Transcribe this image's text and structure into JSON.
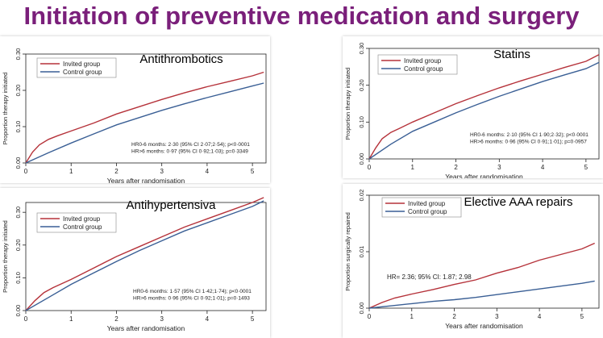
{
  "slide_title": "Initiation of preventive medication and surgery",
  "colors": {
    "invited": "#b5323a",
    "control": "#3a5f95",
    "plot_bg": "#ffffff",
    "frame": "#000000",
    "title": "#7a1f7a"
  },
  "chart_data": [
    {
      "type": "line",
      "title": "Antithrombotics",
      "xlabel": "Years after randomisation",
      "ylabel": "Proportion therapy initiated",
      "xlim": [
        0,
        5.3
      ],
      "ylim": [
        0,
        0.3
      ],
      "xticks": [
        "0",
        "1",
        "2",
        "3",
        "4",
        "5"
      ],
      "yticks": [
        "0.00",
        "0.10",
        "0.20",
        "0.30"
      ],
      "legend": [
        "Invited group",
        "Control group"
      ],
      "annotation_lines": [
        "HR0-6 months: 2·30 (95% CI 2·07;2·54); p<0·0001",
        "HR>6 months: 0·97 (95% CI 0·92;1·03); p=0·3349"
      ],
      "series": [
        {
          "name": "Invited group",
          "x": [
            0,
            0.15,
            0.3,
            0.5,
            0.7,
            1,
            1.5,
            2,
            2.5,
            3,
            3.5,
            4,
            4.5,
            5,
            5.25
          ],
          "y": [
            0,
            0.03,
            0.05,
            0.065,
            0.075,
            0.088,
            0.11,
            0.135,
            0.155,
            0.175,
            0.193,
            0.21,
            0.225,
            0.24,
            0.25
          ]
        },
        {
          "name": "Control group",
          "x": [
            0,
            0.5,
            1,
            1.5,
            2,
            2.5,
            3,
            3.5,
            4,
            4.5,
            5,
            5.25
          ],
          "y": [
            0,
            0.028,
            0.055,
            0.08,
            0.105,
            0.125,
            0.145,
            0.163,
            0.18,
            0.196,
            0.212,
            0.22
          ]
        }
      ]
    },
    {
      "type": "line",
      "title": "Statins",
      "xlabel": "Years after randomisation",
      "ylabel": "Proportion therapy initiated",
      "xlim": [
        0,
        5.3
      ],
      "ylim": [
        0,
        0.3
      ],
      "xticks": [
        "0",
        "1",
        "2",
        "3",
        "4",
        "5"
      ],
      "yticks": [
        "0.00",
        "0.10",
        "0.20",
        "0.30"
      ],
      "legend": [
        "Invited group",
        "Control group"
      ],
      "annotation_lines": [
        "HR0-6 months: 2·10 (95% CI 1·90;2·32); p<0·0001",
        "HR>6 months: 0·96 (95% CI 0·91;1·01); p=0·0957"
      ],
      "series": [
        {
          "name": "Invited group",
          "x": [
            0,
            0.15,
            0.3,
            0.5,
            0.7,
            1,
            1.5,
            2,
            2.5,
            3,
            3.5,
            4,
            4.5,
            5,
            5.3
          ],
          "y": [
            0,
            0.03,
            0.055,
            0.072,
            0.083,
            0.1,
            0.125,
            0.15,
            0.172,
            0.193,
            0.212,
            0.23,
            0.248,
            0.265,
            0.283
          ]
        },
        {
          "name": "Control group",
          "x": [
            0,
            0.5,
            1,
            1.5,
            2,
            2.5,
            3,
            3.5,
            4,
            4.5,
            5,
            5.3
          ],
          "y": [
            0,
            0.04,
            0.075,
            0.1,
            0.125,
            0.148,
            0.17,
            0.19,
            0.21,
            0.228,
            0.245,
            0.262
          ]
        }
      ]
    },
    {
      "type": "line",
      "title": "Antihypertensiva",
      "xlabel": "Years after randomisation",
      "ylabel": "Proportion therapy initiated",
      "xlim": [
        0,
        5.3
      ],
      "ylim": [
        0,
        0.33
      ],
      "xticks": [
        "0",
        "1",
        "2",
        "3",
        "4",
        "5"
      ],
      "yticks": [
        "0.00",
        "0.10",
        "0.20",
        "0.30"
      ],
      "legend": [
        "Invited group",
        "Control group"
      ],
      "annotation_lines": [
        "HR0-6 months: 1·57 (95% CI 1·42;1·74); p<0·0001",
        "HR>6 months: 0·96 (95% CI 0·92;1·01); p=0·1493"
      ],
      "series": [
        {
          "name": "Invited group",
          "x": [
            0,
            0.2,
            0.4,
            0.6,
            1,
            1.5,
            2,
            2.5,
            3,
            3.5,
            4,
            4.5,
            5,
            5.25
          ],
          "y": [
            0,
            0.03,
            0.055,
            0.07,
            0.095,
            0.13,
            0.165,
            0.195,
            0.225,
            0.255,
            0.28,
            0.305,
            0.33,
            0.345
          ]
        },
        {
          "name": "Control group",
          "x": [
            0,
            0.5,
            1,
            1.5,
            2,
            2.5,
            3,
            3.5,
            4,
            4.5,
            5,
            5.25
          ],
          "y": [
            0,
            0.04,
            0.08,
            0.115,
            0.15,
            0.183,
            0.213,
            0.243,
            0.268,
            0.293,
            0.318,
            0.335
          ]
        }
      ]
    },
    {
      "type": "line",
      "title": "Elective AAA repairs",
      "xlabel": "Years after randomisation",
      "ylabel": "Proportion surgically repaired",
      "xlim": [
        0,
        5.4
      ],
      "ylim": [
        0,
        0.02
      ],
      "xticks": [
        "0",
        "1",
        "2",
        "3",
        "4",
        "5"
      ],
      "yticks": [
        "0.00",
        "0.01",
        "0.02"
      ],
      "legend": [
        "Invited group",
        "Control group"
      ],
      "annotation_lines": [
        "HR= 2.36; 95% CI: 1.87; 2.98"
      ],
      "series": [
        {
          "name": "Invited group",
          "x": [
            0,
            0.3,
            0.6,
            1,
            1.5,
            2,
            2.5,
            3,
            3.5,
            4,
            4.5,
            5,
            5.3
          ],
          "y": [
            0,
            0.001,
            0.0018,
            0.0025,
            0.0033,
            0.0042,
            0.005,
            0.0062,
            0.0072,
            0.0085,
            0.0095,
            0.0105,
            0.0115
          ]
        },
        {
          "name": "Control group",
          "x": [
            0,
            0.5,
            1,
            1.5,
            2,
            2.5,
            3,
            3.5,
            4,
            4.5,
            5,
            5.3
          ],
          "y": [
            0,
            0.0004,
            0.0008,
            0.0012,
            0.0015,
            0.0019,
            0.0024,
            0.0029,
            0.0034,
            0.0039,
            0.0044,
            0.0048
          ]
        }
      ]
    }
  ]
}
